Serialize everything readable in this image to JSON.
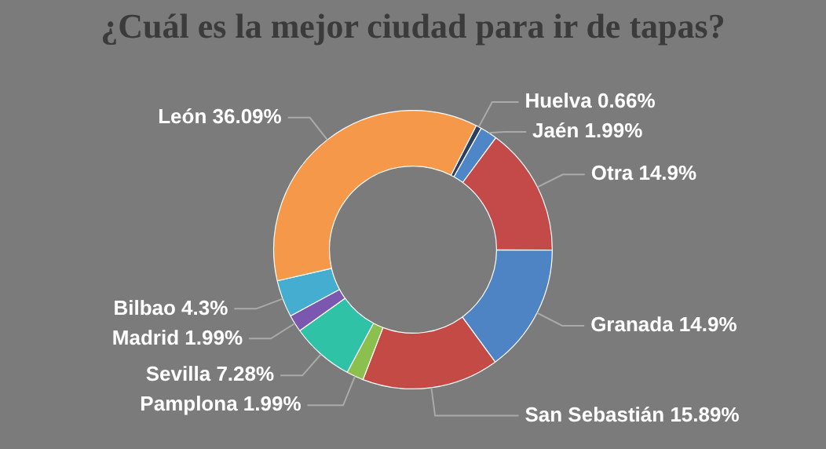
{
  "chart_data": {
    "type": "donut",
    "title": "¿Cuál es la mejor ciudad para ir de tapas?",
    "categories": [
      "Huelva",
      "Jaén",
      "Otra",
      "Granada",
      "San Sebastián",
      "Pamplona",
      "Sevilla",
      "Madrid",
      "Bilbao",
      "León"
    ],
    "values": [
      0.66,
      1.99,
      14.9,
      14.9,
      15.89,
      1.99,
      7.28,
      1.99,
      4.3,
      36.09
    ],
    "value_labels": [
      "0.66%",
      "1.99%",
      "14.9%",
      "14.9%",
      "15.89%",
      "1.99%",
      "7.28%",
      "1.99%",
      "4.3%",
      "36.09%"
    ],
    "colors": [
      "#2a3f66",
      "#4f86c8",
      "#c44a4a",
      "#4f84c4",
      "#c44a45",
      "#8cc04e",
      "#2fc2a6",
      "#7b57b0",
      "#45aed0",
      "#f5984a"
    ],
    "legend": false
  }
}
